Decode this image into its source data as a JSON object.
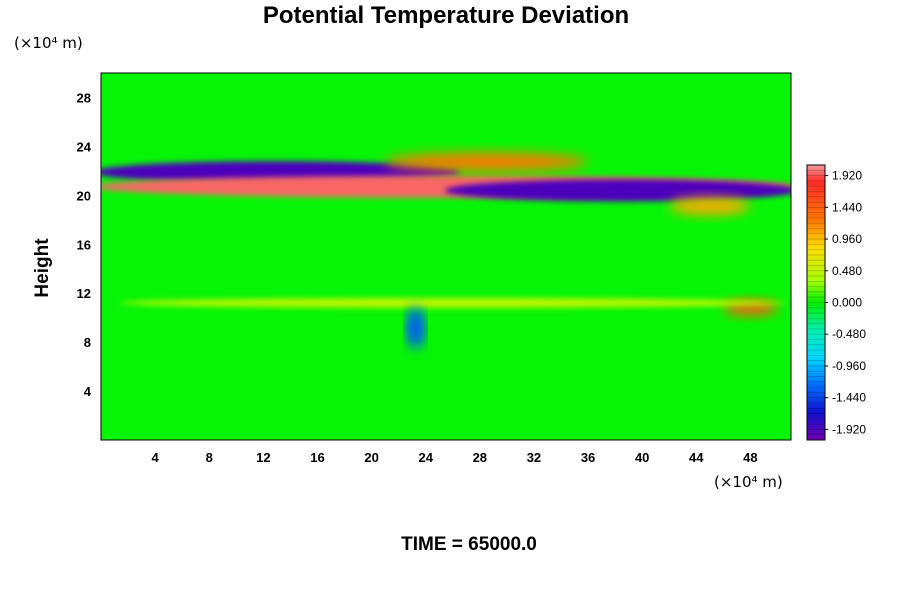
{
  "chart_data": {
    "type": "heatmap",
    "title": "Potential Temperature Deviation",
    "ylabel": "Height",
    "x_unit": "(×10⁴ m)",
    "y_unit": "(×10⁴ m)",
    "xlim": [
      0,
      51
    ],
    "ylim": [
      0,
      30
    ],
    "x_ticks": [
      "4",
      "8",
      "12",
      "16",
      "20",
      "24",
      "28",
      "32",
      "36",
      "40",
      "44",
      "48"
    ],
    "y_ticks": [
      "4",
      "8",
      "12",
      "16",
      "20",
      "24",
      "28"
    ],
    "colorbar": {
      "range": [
        -2.08,
        2.08
      ],
      "labels": [
        "1.920",
        "1.440",
        "0.960",
        "0.480",
        "0.000",
        "-0.480",
        "-0.960",
        "-1.440",
        "-1.920"
      ]
    },
    "features": [
      {
        "kind": "negative-band",
        "x": [
          0,
          26
        ],
        "y": [
          21.0,
          22.8
        ],
        "value": -1.9
      },
      {
        "kind": "positive-band",
        "x": [
          0,
          51
        ],
        "y": [
          19.8,
          21.6
        ],
        "value": 1.95
      },
      {
        "kind": "negative-band",
        "x": [
          26,
          51
        ],
        "y": [
          19.5,
          21.3
        ],
        "value": -1.9
      },
      {
        "kind": "positive-patch",
        "x": [
          21,
          36
        ],
        "y": [
          22.0,
          23.5
        ],
        "value": 1.2
      },
      {
        "kind": "positive-patch",
        "x": [
          42,
          48
        ],
        "y": [
          18.4,
          19.8
        ],
        "value": 1.0
      },
      {
        "kind": "positive-patch",
        "x": [
          46,
          50
        ],
        "y": [
          10.2,
          11.4
        ],
        "value": 1.4
      },
      {
        "kind": "positive-band",
        "x": [
          2,
          50
        ],
        "y": [
          10.8,
          11.6
        ],
        "value": 0.5
      },
      {
        "kind": "negative-patch",
        "x": [
          22.5,
          24
        ],
        "y": [
          7.5,
          10.8
        ],
        "value": -1.2
      }
    ],
    "grid": false
  },
  "footer": {
    "time_label": "TIME = 65000.0"
  }
}
